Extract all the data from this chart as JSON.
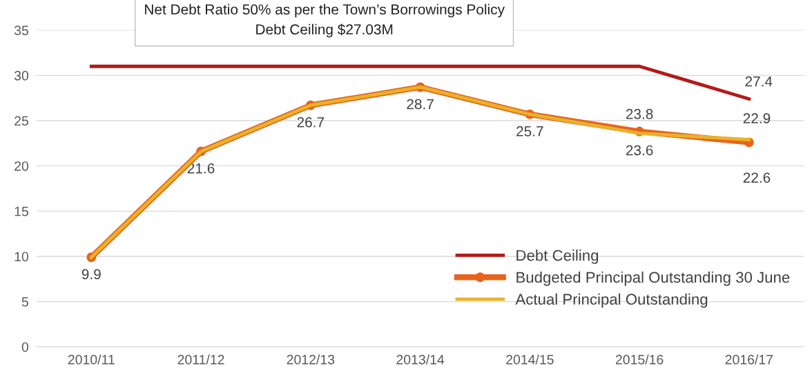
{
  "chart_data": {
    "type": "line",
    "title": "Net Debt Ratio 50% as per the Town’s Borrowings Policy",
    "subtitle": "Debt Ceiling $27.03M",
    "categories": [
      "2010/11",
      "2011/12",
      "2012/13",
      "2013/14",
      "2014/15",
      "2015/16",
      "2016/17"
    ],
    "series": [
      {
        "name": "Debt Ceiling",
        "color": "#b5191a",
        "marker": "none",
        "values": [
          31,
          31,
          31,
          31,
          31,
          31,
          27.4
        ],
        "value_labels": [
          null,
          null,
          null,
          null,
          null,
          null,
          "27.4"
        ]
      },
      {
        "name": "Budgeted Principal Outstanding 30 June",
        "color": "#e8641b",
        "marker": "circle",
        "values": [
          9.9,
          21.6,
          26.7,
          28.7,
          25.7,
          23.8,
          22.6
        ],
        "value_labels": [
          null,
          null,
          null,
          null,
          null,
          "23.8",
          "22.6"
        ]
      },
      {
        "name": "Actual Principal Outstanding",
        "color": "#e8b22a",
        "marker": "none",
        "values": [
          9.9,
          21.6,
          26.7,
          28.7,
          25.7,
          23.6,
          22.9
        ],
        "value_labels": [
          "9.9",
          "21.6",
          "26.7",
          "28.7",
          "25.7",
          "23.6",
          "22.9"
        ]
      }
    ],
    "ylim": [
      0,
      35
    ],
    "yticks": [
      0,
      5,
      10,
      15,
      20,
      25,
      30,
      35
    ],
    "grid": "y",
    "legend": "bottom right",
    "line_style": "solid"
  }
}
